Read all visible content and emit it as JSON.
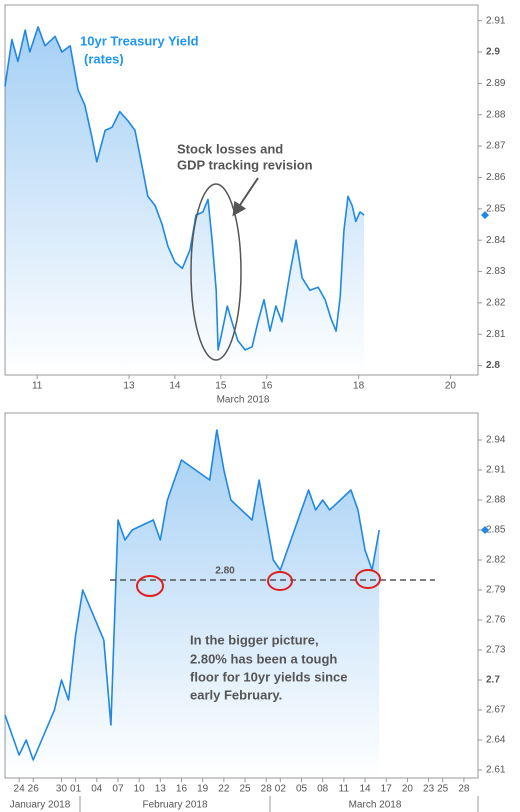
{
  "chart_data": [
    {
      "type": "line",
      "x": [
        10.3,
        10.45,
        10.58,
        10.74,
        10.84,
        11.02,
        11.17,
        11.39,
        11.54,
        11.72,
        11.89,
        12.04,
        12.19,
        12.3,
        12.48,
        12.63,
        12.8,
        12.98,
        13.13,
        13.28,
        13.41,
        13.57,
        13.72,
        13.85,
        14.0,
        14.16,
        14.33,
        14.46,
        14.61,
        14.72,
        14.81,
        14.9,
        14.94,
        15.03,
        15.14,
        15.24,
        15.37,
        15.53,
        15.68,
        15.81,
        15.94,
        16.07,
        16.2,
        16.33,
        16.51,
        16.64,
        16.77,
        16.94,
        17.12,
        17.27,
        17.4,
        17.51,
        17.6,
        17.68,
        17.77,
        17.86,
        17.94,
        18.03,
        18.12
      ],
      "series": [
        {
          "name": "10yr Treasury Yield",
          "unit": "(rates)",
          "color": "#1e88e5",
          "values": [
            2.889,
            2.904,
            2.897,
            2.907,
            2.9,
            2.908,
            2.902,
            2.905,
            2.9,
            2.902,
            2.888,
            2.883,
            2.873,
            2.865,
            2.875,
            2.876,
            2.881,
            2.878,
            2.875,
            2.864,
            2.854,
            2.851,
            2.845,
            2.838,
            2.833,
            2.831,
            2.837,
            2.848,
            2.849,
            2.853,
            2.84,
            2.824,
            2.805,
            2.811,
            2.819,
            2.814,
            2.808,
            2.805,
            2.806,
            2.814,
            2.821,
            2.811,
            2.819,
            2.814,
            2.83,
            2.84,
            2.828,
            2.824,
            2.825,
            2.821,
            2.815,
            2.811,
            2.822,
            2.843,
            2.854,
            2.851,
            2.846,
            2.849,
            2.848
          ]
        }
      ],
      "xlim": [
        10.3,
        20.6
      ],
      "xticks": [
        11,
        13,
        14,
        15,
        16,
        18,
        20
      ],
      "xlabel": "March 2018",
      "ylim": [
        2.797,
        2.915
      ],
      "yticks": [
        2.8,
        2.81,
        2.82,
        2.83,
        2.84,
        2.85,
        2.86,
        2.87,
        2.88,
        2.89,
        2.9,
        2.91
      ],
      "grid": false,
      "annotation": [
        "Stock losses and",
        "GDP tracking revision"
      ]
    },
    {
      "type": "line",
      "x": [
        "2018-01-22",
        "2018-01-23",
        "2018-01-24",
        "2018-01-25",
        "2018-01-26",
        "2018-01-29",
        "2018-01-30",
        "2018-01-31",
        "2018-02-01",
        "2018-02-02",
        "2018-02-05",
        "2018-02-06",
        "2018-02-07",
        "2018-02-08",
        "2018-02-09",
        "2018-02-12",
        "2018-02-13",
        "2018-02-14",
        "2018-02-15",
        "2018-02-16",
        "2018-02-20",
        "2018-02-21",
        "2018-02-22",
        "2018-02-23",
        "2018-02-26",
        "2018-02-27",
        "2018-02-28",
        "2018-03-01",
        "2018-03-02",
        "2018-03-05",
        "2018-03-06",
        "2018-03-07",
        "2018-03-08",
        "2018-03-09",
        "2018-03-12",
        "2018-03-13",
        "2018-03-14",
        "2018-03-15",
        "2018-03-16"
      ],
      "series": [
        {
          "color": "#1e88e5",
          "values": [
            2.665,
            2.645,
            2.625,
            2.64,
            2.62,
            2.67,
            2.7,
            2.68,
            2.745,
            2.79,
            2.74,
            2.655,
            2.86,
            2.84,
            2.85,
            2.86,
            2.84,
            2.88,
            2.9,
            2.92,
            2.9,
            2.95,
            2.91,
            2.88,
            2.86,
            2.9,
            2.86,
            2.82,
            2.81,
            2.87,
            2.89,
            2.87,
            2.88,
            2.87,
            2.89,
            2.87,
            2.83,
            2.81,
            2.85
          ]
        }
      ],
      "xlim": [
        "2018-01-22",
        "2018-03-30"
      ],
      "xticks": [
        {
          "value": "2018-01-24",
          "label": "24"
        },
        {
          "value": "2018-01-26",
          "label": "26"
        },
        {
          "value": "2018-01-30",
          "label": "30"
        },
        {
          "value": "2018-02-01",
          "label": "01"
        },
        {
          "value": "2018-02-04",
          "label": "04"
        },
        {
          "value": "2018-02-07",
          "label": "07"
        },
        {
          "value": "2018-02-10",
          "label": "10"
        },
        {
          "value": "2018-02-13",
          "label": "13"
        },
        {
          "value": "2018-02-16",
          "label": "16"
        },
        {
          "value": "2018-02-19",
          "label": "19"
        },
        {
          "value": "2018-02-22",
          "label": "22"
        },
        {
          "value": "2018-02-25",
          "label": "25"
        },
        {
          "value": "2018-02-28",
          "label": "28"
        },
        {
          "value": "2018-03-02",
          "label": "02"
        },
        {
          "value": "2018-03-05",
          "label": "05"
        },
        {
          "value": "2018-03-08",
          "label": "08"
        },
        {
          "value": "2018-03-11",
          "label": "11"
        },
        {
          "value": "2018-03-14",
          "label": "14"
        },
        {
          "value": "2018-03-17",
          "label": "17"
        },
        {
          "value": "2018-03-20",
          "label": "20"
        },
        {
          "value": "2018-03-23",
          "label": "23"
        },
        {
          "value": "2018-03-25",
          "label": "25"
        },
        {
          "value": "2018-03-28",
          "label": "28"
        }
      ],
      "month_labels": [
        "January 2018",
        "February 2018",
        "March 2018"
      ],
      "ylim": [
        2.602,
        2.967
      ],
      "yticks": [
        2.61,
        2.64,
        2.67,
        2.7,
        2.73,
        2.76,
        2.79,
        2.82,
        2.85,
        2.88,
        2.91,
        2.94
      ],
      "grid": false,
      "reference_line": {
        "value": 2.8,
        "label": "2.80"
      },
      "annotation": [
        "In the bigger picture,",
        "2.80% has been a tough",
        "floor for 10yr yields since",
        "early February."
      ]
    }
  ]
}
